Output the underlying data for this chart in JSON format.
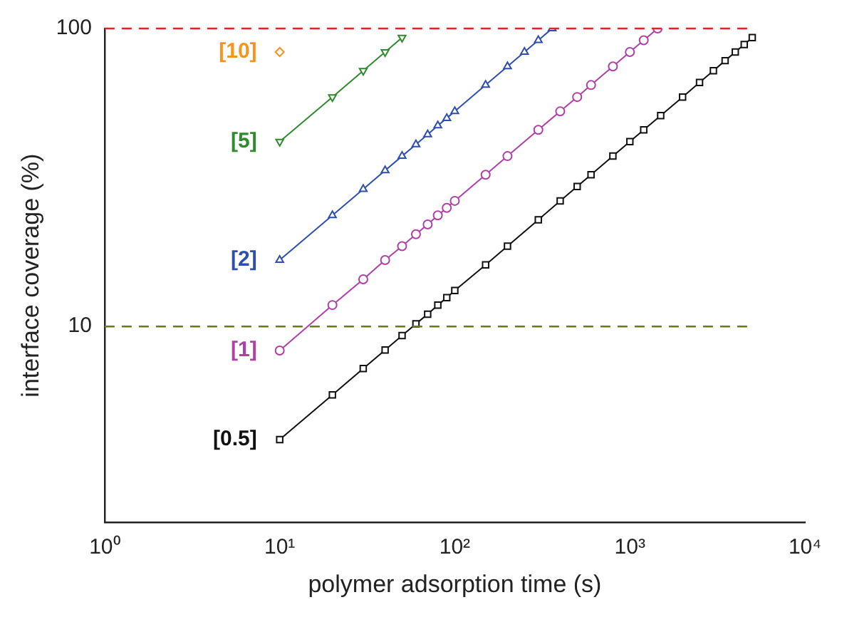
{
  "chart_data": {
    "type": "line",
    "xlabel": "polymer adsorption time (s)",
    "ylabel": "interface coverage (%)",
    "log": "xy",
    "xlim": [
      1,
      10000
    ],
    "ylim": [
      2.2,
      100
    ],
    "xticks": [
      {
        "value": 1,
        "label": "10⁰"
      },
      {
        "value": 10,
        "label": "10¹"
      },
      {
        "value": 100,
        "label": "10²"
      },
      {
        "value": 1000,
        "label": "10³"
      },
      {
        "value": 10000,
        "label": "10⁴"
      }
    ],
    "yticks": [
      10,
      100
    ],
    "grid": false,
    "legend": false,
    "line_style": "solid",
    "ref_lines": [
      {
        "axis": "y",
        "value": 100,
        "color": "#ed1c24",
        "line_style": "dashed"
      },
      {
        "axis": "y",
        "value": 10,
        "color": "#6b7a1e",
        "line_style": "dashed"
      }
    ],
    "series": [
      {
        "name": "[0.5]",
        "color": "#111111",
        "marker": "square",
        "x": [
          10,
          20,
          30,
          40,
          50,
          60,
          70,
          80,
          90,
          100,
          150,
          200,
          300,
          400,
          500,
          600,
          800,
          1000,
          1200,
          1500,
          2000,
          2500,
          3000,
          3500,
          4000,
          4500,
          5000
        ],
        "values": [
          4.17,
          5.89,
          7.22,
          8.34,
          9.32,
          10.2,
          11.0,
          11.8,
          12.5,
          13.2,
          16.1,
          18.6,
          22.8,
          26.4,
          29.5,
          32.3,
          37.3,
          41.7,
          45.7,
          51.0,
          58.9,
          65.9,
          72.2,
          78.0,
          83.4,
          88.4,
          93.2
        ]
      },
      {
        "name": "[1]",
        "color": "#b040a8",
        "marker": "circle",
        "x": [
          10,
          20,
          30,
          40,
          50,
          60,
          70,
          80,
          90,
          100,
          150,
          200,
          300,
          400,
          500,
          600,
          800,
          1000,
          1200,
          1440
        ],
        "values": [
          8.3,
          11.8,
          14.4,
          16.7,
          18.6,
          20.4,
          22.0,
          23.6,
          25.0,
          26.4,
          32.3,
          37.3,
          45.7,
          52.7,
          58.9,
          64.6,
          74.6,
          83.4,
          91.3,
          100
        ]
      },
      {
        "name": "[2]",
        "color": "#2e4fb0",
        "marker": "triangle",
        "x": [
          10,
          20,
          30,
          40,
          50,
          60,
          70,
          80,
          90,
          100,
          150,
          200,
          250,
          300,
          360
        ],
        "values": [
          16.7,
          23.6,
          28.9,
          33.4,
          37.3,
          40.8,
          44.1,
          47.2,
          50.0,
          52.7,
          64.6,
          74.6,
          83.4,
          91.3,
          100
        ]
      },
      {
        "name": "[5]",
        "color": "#2e8b2e",
        "marker": "triangle-down",
        "x": [
          10,
          20,
          30,
          40,
          50
        ],
        "values": [
          41.7,
          58.9,
          72.2,
          83.4,
          93.2
        ]
      },
      {
        "name": "[10]",
        "color": "#f7941d",
        "marker": "diamond",
        "x": [
          10
        ],
        "values": [
          83.4
        ]
      }
    ]
  }
}
